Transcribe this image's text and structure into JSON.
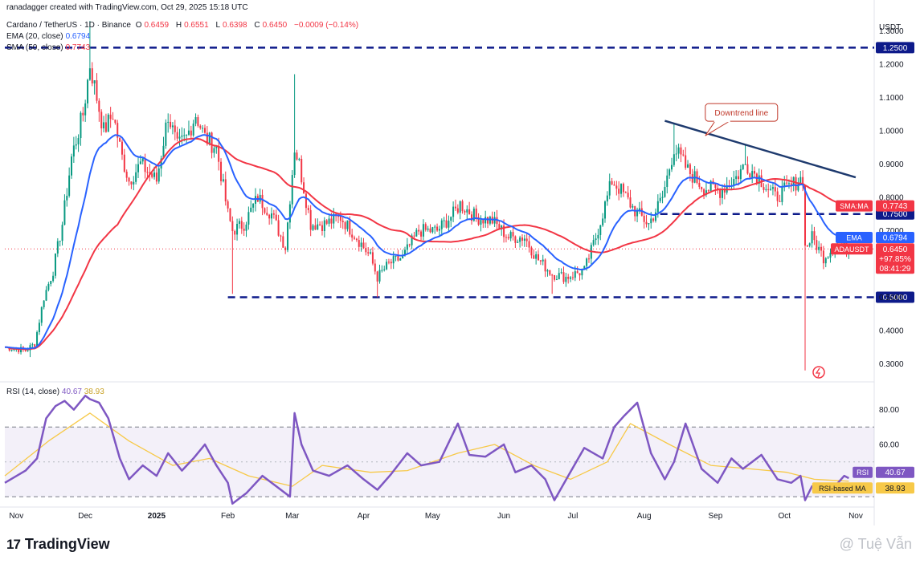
{
  "header": {
    "credit": "ranadagger created with TradingView.com, Oct 29, 2025 15:18 UTC",
    "symbol": "Cardano / TetherUS · 1D · Binance",
    "o_label": "O",
    "o": "0.6459",
    "h_label": "H",
    "h": "0.6551",
    "l_label": "L",
    "l": "0.6398",
    "c_label": "C",
    "c": "0.6450",
    "change": "−0.0009 (−0.14%)",
    "ema_label": "EMA (20, close)",
    "ema_value": "0.6794",
    "sma_label": "SMA (50, close)",
    "sma_value": "0.7743"
  },
  "colors": {
    "up": "#089981",
    "down": "#f23645",
    "ema": "#2962ff",
    "sma": "#f23645",
    "rsi": "#7e57c2",
    "rsi_ma": "#f7c948",
    "level": "#0d1a8a",
    "trend": "#1e3a6e"
  },
  "chart_data": [
    {
      "type": "candlestick",
      "title": "Cardano / TetherUS · 1D · Binance",
      "currency_label": "USDT",
      "y_ticks": [
        1.3,
        1.2,
        1.1,
        1.0,
        0.9,
        0.8,
        0.7,
        0.6,
        0.5,
        0.4,
        0.3
      ],
      "y_tick_labels": [
        "1.3000",
        "1.2000",
        "1.1000",
        "1.0000",
        "0.9000",
        "0.8000",
        "0.7000",
        "0.6000",
        "0.5000",
        "0.4000",
        "0.3000"
      ],
      "ylim": [
        0.26,
        1.34
      ],
      "x_labels": [
        "Nov",
        "Dec",
        "2025",
        "Feb",
        "Mar",
        "Apr",
        "May",
        "Jun",
        "Jul",
        "Aug",
        "Sep",
        "Oct",
        "Nov"
      ],
      "x_label_dates": [
        "2024-11-01",
        "2024-12-01",
        "2025-01-01",
        "2025-02-01",
        "2025-03-01",
        "2025-04-01",
        "2025-05-01",
        "2025-06-01",
        "2025-07-01",
        "2025-08-01",
        "2025-09-01",
        "2025-10-01",
        "2025-11-01"
      ],
      "price_path": {
        "dates": [
          "2024-10-27",
          "2024-11-05",
          "2024-11-09",
          "2024-11-13",
          "2024-11-17",
          "2024-11-21",
          "2024-11-25",
          "2024-11-30",
          "2024-12-03",
          "2024-12-06",
          "2024-12-09",
          "2024-12-13",
          "2024-12-17",
          "2024-12-20",
          "2024-12-25",
          "2025-01-01",
          "2025-01-06",
          "2025-01-10",
          "2025-01-14",
          "2025-01-18",
          "2025-01-22",
          "2025-01-27",
          "2025-02-01",
          "2025-02-03",
          "2025-02-08",
          "2025-02-14",
          "2025-02-20",
          "2025-02-26",
          "2025-03-02",
          "2025-03-04",
          "2025-03-09",
          "2025-03-15",
          "2025-03-22",
          "2025-03-29",
          "2025-04-04",
          "2025-04-07",
          "2025-04-12",
          "2025-04-18",
          "2025-04-25",
          "2025-05-03",
          "2025-05-10",
          "2025-05-13",
          "2025-05-20",
          "2025-05-27",
          "2025-06-03",
          "2025-06-10",
          "2025-06-15",
          "2025-06-22",
          "2025-06-28",
          "2025-07-06",
          "2025-07-11",
          "2025-07-18",
          "2025-07-22",
          "2025-07-28",
          "2025-08-03",
          "2025-08-09",
          "2025-08-14",
          "2025-08-20",
          "2025-08-27",
          "2025-09-03",
          "2025-09-10",
          "2025-09-14",
          "2025-09-20",
          "2025-09-27",
          "2025-10-03",
          "2025-10-09",
          "2025-10-10",
          "2025-10-13",
          "2025-10-18",
          "2025-10-24",
          "2025-10-29"
        ],
        "close": [
          0.35,
          0.34,
          0.36,
          0.5,
          0.58,
          0.72,
          0.92,
          1.05,
          1.2,
          1.1,
          1.0,
          1.05,
          0.92,
          0.85,
          0.9,
          0.85,
          1.05,
          0.95,
          0.98,
          1.05,
          0.98,
          0.95,
          0.75,
          0.7,
          0.72,
          0.8,
          0.75,
          0.65,
          0.95,
          0.9,
          0.72,
          0.72,
          0.74,
          0.68,
          0.62,
          0.56,
          0.6,
          0.62,
          0.7,
          0.7,
          0.75,
          0.78,
          0.74,
          0.73,
          0.68,
          0.68,
          0.62,
          0.57,
          0.56,
          0.58,
          0.68,
          0.85,
          0.82,
          0.76,
          0.72,
          0.8,
          0.95,
          0.88,
          0.83,
          0.82,
          0.86,
          0.9,
          0.86,
          0.8,
          0.83,
          0.86,
          0.65,
          0.68,
          0.62,
          0.66,
          0.645
        ]
      },
      "lows": {
        "2024-11-07": 0.32,
        "2025-02-03": 0.51,
        "2025-04-07": 0.5,
        "2025-06-22": 0.51,
        "2025-10-10": 0.28
      },
      "highs": {
        "2024-12-03": 1.33,
        "2025-03-02": 1.17,
        "2025-08-14": 1.02,
        "2025-09-14": 0.96
      },
      "ema": {
        "name": "EMA",
        "value_label": "0.6794"
      },
      "sma": {
        "name": "SMA:MA",
        "value_label": "0.7743"
      },
      "price_tag": {
        "name": "ADAUSDT",
        "value": "0.6450",
        "pct": "+97.85%",
        "countdown": "08:41:29"
      },
      "levels": [
        {
          "value": 1.25,
          "label": "1.2500",
          "from": "2024-10-27"
        },
        {
          "value": 0.75,
          "label": "0.7500",
          "from": "2025-08-08"
        },
        {
          "value": 0.5,
          "label": "0.5000",
          "from": "2025-02-01"
        }
      ],
      "trendline": {
        "from_date": "2025-08-10",
        "from_value": 1.03,
        "to_date": "2025-11-01",
        "to_value": 0.86
      },
      "annotation": {
        "text": "Downtrend line",
        "anchor_date": "2025-08-29",
        "anchor_value": 0.99
      }
    },
    {
      "type": "line",
      "title": "RSI (14, close)",
      "ylim": [
        25,
        95
      ],
      "y_ticks": [
        80,
        60
      ],
      "y_tick_labels": [
        "80.00",
        "60.00"
      ],
      "bands": [
        70,
        30
      ],
      "midline": 50,
      "series": [
        {
          "name": "RSI",
          "value_label": "40.67",
          "dates": [
            "2024-10-27",
            "2024-11-05",
            "2024-11-10",
            "2024-11-14",
            "2024-11-18",
            "2024-11-22",
            "2024-11-26",
            "2024-12-01",
            "2024-12-03",
            "2024-12-07",
            "2024-12-11",
            "2024-12-16",
            "2024-12-20",
            "2024-12-26",
            "2025-01-01",
            "2025-01-06",
            "2025-01-12",
            "2025-01-17",
            "2025-01-22",
            "2025-01-27",
            "2025-02-01",
            "2025-02-03",
            "2025-02-09",
            "2025-02-16",
            "2025-02-23",
            "2025-02-28",
            "2025-03-02",
            "2025-03-05",
            "2025-03-10",
            "2025-03-17",
            "2025-03-25",
            "2025-04-01",
            "2025-04-07",
            "2025-04-13",
            "2025-04-20",
            "2025-04-26",
            "2025-05-04",
            "2025-05-12",
            "2025-05-17",
            "2025-05-24",
            "2025-06-01",
            "2025-06-06",
            "2025-06-13",
            "2025-06-19",
            "2025-06-23",
            "2025-06-29",
            "2025-07-06",
            "2025-07-14",
            "2025-07-19",
            "2025-07-23",
            "2025-07-29",
            "2025-08-04",
            "2025-08-10",
            "2025-08-14",
            "2025-08-19",
            "2025-08-26",
            "2025-09-02",
            "2025-09-08",
            "2025-09-13",
            "2025-09-21",
            "2025-09-28",
            "2025-10-04",
            "2025-10-08",
            "2025-10-10",
            "2025-10-13",
            "2025-10-17",
            "2025-10-23",
            "2025-10-27",
            "2025-10-29"
          ],
          "values": [
            38,
            45,
            52,
            75,
            82,
            85,
            80,
            88,
            86,
            84,
            75,
            52,
            40,
            48,
            42,
            55,
            45,
            52,
            60,
            48,
            38,
            26,
            32,
            42,
            35,
            30,
            78,
            60,
            45,
            42,
            48,
            40,
            34,
            43,
            55,
            48,
            50,
            72,
            54,
            53,
            60,
            44,
            48,
            40,
            28,
            42,
            58,
            52,
            70,
            76,
            84,
            55,
            40,
            50,
            72,
            46,
            38,
            52,
            46,
            54,
            40,
            38,
            42,
            28,
            36,
            34,
            36,
            42,
            40.67
          ]
        },
        {
          "name": "RSI-based MA",
          "value_label": "38.93",
          "dates": [
            "2024-10-27",
            "2024-11-15",
            "2024-12-03",
            "2024-12-20",
            "2025-01-08",
            "2025-01-24",
            "2025-02-10",
            "2025-03-01",
            "2025-03-14",
            "2025-04-04",
            "2025-04-20",
            "2025-05-12",
            "2025-05-28",
            "2025-06-14",
            "2025-06-30",
            "2025-07-16",
            "2025-07-26",
            "2025-08-12",
            "2025-08-30",
            "2025-09-16",
            "2025-10-02",
            "2025-10-14",
            "2025-10-29"
          ],
          "values": [
            42,
            62,
            78,
            62,
            48,
            52,
            42,
            36,
            48,
            44,
            45,
            55,
            60,
            48,
            40,
            50,
            72,
            60,
            48,
            46,
            44,
            40,
            38.93
          ]
        }
      ]
    }
  ],
  "footer": {
    "brand": "TradingView",
    "watermark": "@ Tuệ Vẫn"
  }
}
